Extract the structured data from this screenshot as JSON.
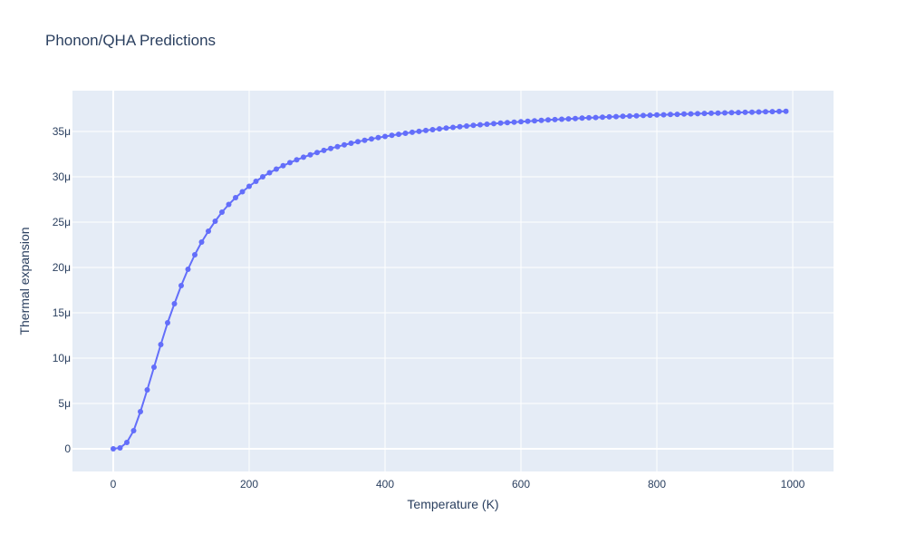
{
  "chart_data": {
    "type": "line",
    "mode": "lines+markers",
    "title": "Phonon/QHA Predictions",
    "xlabel": "Temperature (K)",
    "ylabel": "Thermal expansion",
    "xlim": [
      -60,
      1060
    ],
    "ylim": [
      -2.5e-06,
      3.95e-05
    ],
    "x_ticks": [
      0,
      200,
      400,
      600,
      800,
      1000
    ],
    "x_tick_labels": [
      "0",
      "200",
      "400",
      "600",
      "800",
      "1000"
    ],
    "y_ticks": [
      0,
      5e-06,
      1e-05,
      1.5e-05,
      2e-05,
      2.5e-05,
      3e-05,
      3.5e-05
    ],
    "y_tick_labels": [
      "0",
      "5μ",
      "10μ",
      "15μ",
      "20μ",
      "25μ",
      "30μ",
      "35μ"
    ],
    "grid": true,
    "legend": "none",
    "colors": {
      "plot_background": "#e5ecf6",
      "grid": "#ffffff",
      "line": "#636efa",
      "text": "#2a3f5f"
    },
    "series": [
      {
        "x": [
          0,
          10,
          20,
          30,
          40,
          50,
          60,
          70,
          80,
          90,
          100,
          110,
          120,
          130,
          140,
          150,
          160,
          170,
          180,
          190,
          200,
          210,
          220,
          230,
          240,
          250,
          260,
          270,
          280,
          290,
          300,
          310,
          320,
          330,
          340,
          350,
          360,
          370,
          380,
          390,
          400,
          410,
          420,
          430,
          440,
          450,
          460,
          470,
          480,
          490,
          500,
          510,
          520,
          530,
          540,
          550,
          560,
          570,
          580,
          590,
          600,
          610,
          620,
          630,
          640,
          650,
          660,
          670,
          680,
          690,
          700,
          710,
          720,
          730,
          740,
          750,
          760,
          770,
          780,
          790,
          800,
          810,
          820,
          830,
          840,
          850,
          860,
          870,
          880,
          890,
          900,
          910,
          920,
          930,
          940,
          950,
          960,
          970,
          980,
          990
        ],
        "y": [
          0,
          1e-07,
          7e-07,
          2e-06,
          4.1e-06,
          6.5e-06,
          9e-06,
          1.15e-05,
          1.39e-05,
          1.6e-05,
          1.8e-05,
          1.98e-05,
          2.14e-05,
          2.28e-05,
          2.4e-05,
          2.51e-05,
          2.61e-05,
          2.695e-05,
          2.77e-05,
          2.835e-05,
          2.895e-05,
          2.95e-05,
          3e-05,
          3.045e-05,
          3.085e-05,
          3.122e-05,
          3.156e-05,
          3.187e-05,
          3.216e-05,
          3.243e-05,
          3.268e-05,
          3.291e-05,
          3.313e-05,
          3.333e-05,
          3.352e-05,
          3.37e-05,
          3.387e-05,
          3.403e-05,
          3.418e-05,
          3.432e-05,
          3.445e-05,
          3.457e-05,
          3.469e-05,
          3.48e-05,
          3.491e-05,
          3.501e-05,
          3.511e-05,
          3.52e-05,
          3.529e-05,
          3.537e-05,
          3.545e-05,
          3.553e-05,
          3.56e-05,
          3.567e-05,
          3.574e-05,
          3.58e-05,
          3.586e-05,
          3.592e-05,
          3.598e-05,
          3.603e-05,
          3.608e-05,
          3.613e-05,
          3.618e-05,
          3.623e-05,
          3.627e-05,
          3.631e-05,
          3.635e-05,
          3.639e-05,
          3.643e-05,
          3.647e-05,
          3.651e-05,
          3.654e-05,
          3.658e-05,
          3.661e-05,
          3.664e-05,
          3.667e-05,
          3.67e-05,
          3.673e-05,
          3.676e-05,
          3.679e-05,
          3.682e-05,
          3.684e-05,
          3.687e-05,
          3.689e-05,
          3.692e-05,
          3.694e-05,
          3.696e-05,
          3.699e-05,
          3.701e-05,
          3.703e-05,
          3.705e-05,
          3.707e-05,
          3.709e-05,
          3.711e-05,
          3.713e-05,
          3.715e-05,
          3.717e-05,
          3.719e-05,
          3.721e-05,
          3.723e-05
        ]
      }
    ]
  }
}
